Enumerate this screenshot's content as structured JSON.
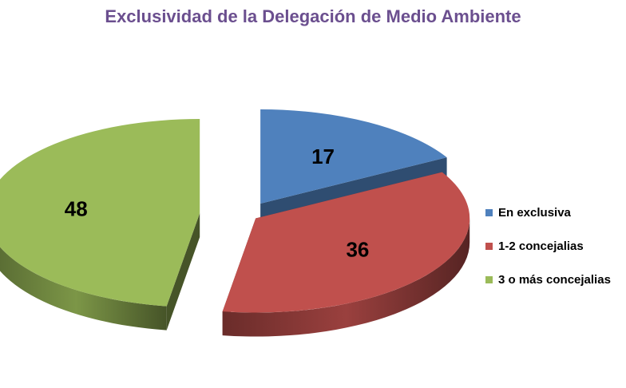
{
  "chart_data": {
    "type": "pie",
    "title": "Exclusividad de la Delegación de Medio Ambiente",
    "categories": [
      "En exclusiva",
      "1-2 concejalias",
      "3 o más concejalias"
    ],
    "values": [
      17,
      36,
      48
    ],
    "colors": [
      "#4f81bd",
      "#c0504d",
      "#9bbb59"
    ],
    "legend_position": "right",
    "exploded": true,
    "style": "3d"
  }
}
